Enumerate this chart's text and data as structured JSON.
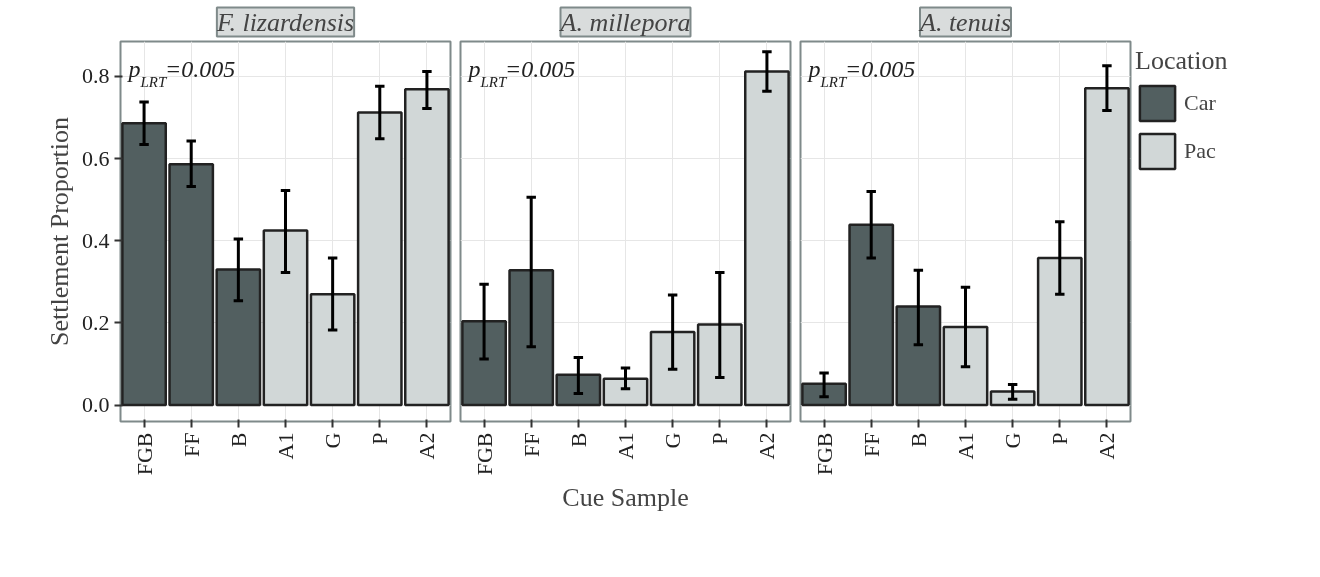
{
  "chart_data": [
    {
      "type": "bar",
      "title": "F. lizardensis",
      "ylabel": "Settlement Proportion",
      "annotations": [
        "p$_{LRT}$=0.005"
      ],
      "categories": [
        "FGB",
        "FF",
        "B",
        "A1",
        "G",
        "P",
        "A2"
      ],
      "ylim": [
        -0.04,
        0.885
      ],
      "yticks": [
        {
          "value": 0,
          "label": "0.0"
        },
        0.2,
        0.4,
        0.6,
        0.8
      ],
      "grid": true,
      "series": [
        {
          "color": "#525f60",
          "values": [
            0.686,
            0.586,
            0.33,
            null,
            null,
            null,
            null
          ],
          "errors": [
            [
              0.634,
              0.738
            ],
            [
              0.532,
              0.643
            ],
            [
              0.254,
              0.404
            ],
            null,
            null,
            null,
            null
          ]
        },
        {
          "color": "#d1d7d7",
          "values": [
            null,
            null,
            null,
            0.425,
            0.27,
            0.712,
            0.769
          ],
          "errors": [
            null,
            null,
            null,
            [
              0.323,
              0.522
            ],
            [
              0.183,
              0.358
            ],
            [
              0.648,
              0.776
            ],
            [
              0.722,
              0.812
            ]
          ]
        }
      ]
    },
    {
      "type": "bar",
      "title": "A. millepora",
      "xlabel": "Cue Sample",
      "annotations": [
        "p$_{LRT}$=0.005"
      ],
      "tick_labels": "x",
      "categories": [
        "FGB",
        "FF",
        "B",
        "A1",
        "G",
        "P",
        "A2"
      ],
      "ylim": [
        -0.04,
        0.885
      ],
      "yticks": [
        0,
        0.2,
        0.4,
        0.6,
        0.8
      ],
      "grid": true,
      "series": [
        {
          "color": "#525f60",
          "values": [
            0.204,
            0.328,
            0.074,
            null,
            null,
            null,
            null
          ],
          "errors": [
            [
              0.112,
              0.294
            ],
            [
              0.142,
              0.506
            ],
            [
              0.028,
              0.116
            ],
            null,
            null,
            null,
            null
          ]
        },
        {
          "color": "#d1d7d7",
          "values": [
            null,
            null,
            null,
            0.064,
            0.178,
            0.196,
            0.812
          ],
          "errors": [
            null,
            null,
            null,
            [
              0.04,
              0.09
            ],
            [
              0.087,
              0.268
            ],
            [
              0.067,
              0.323
            ],
            [
              0.764,
              0.86
            ]
          ]
        }
      ]
    },
    {
      "type": "bar",
      "title": "A. tenuis",
      "annotations": [
        "p$_{LRT}$=0.005"
      ],
      "tick_labels": "x",
      "legend": "right",
      "legend_title": "Location",
      "categories": [
        "FGB",
        "FF",
        "B",
        "A1",
        "G",
        "P",
        "A2"
      ],
      "ylim": [
        -0.04,
        0.885
      ],
      "yticks": [
        0,
        0.2,
        0.4,
        0.6,
        0.8
      ],
      "grid": true,
      "series": [
        {
          "name": "Car",
          "color": "#525f60",
          "values": [
            0.052,
            0.439,
            0.24,
            null,
            null,
            null,
            null
          ],
          "errors": [
            [
              0.02,
              0.078
            ],
            [
              0.358,
              0.52
            ],
            [
              0.147,
              0.328
            ],
            null,
            null,
            null,
            null
          ]
        },
        {
          "name": "Pac",
          "color": "#d1d7d7",
          "values": [
            null,
            null,
            null,
            0.19,
            0.033,
            0.358,
            0.771
          ],
          "errors": [
            null,
            null,
            null,
            [
              0.093,
              0.287
            ],
            [
              0.014,
              0.05
            ],
            [
              0.27,
              0.446
            ],
            [
              0.717,
              0.826
            ]
          ]
        }
      ]
    }
  ]
}
